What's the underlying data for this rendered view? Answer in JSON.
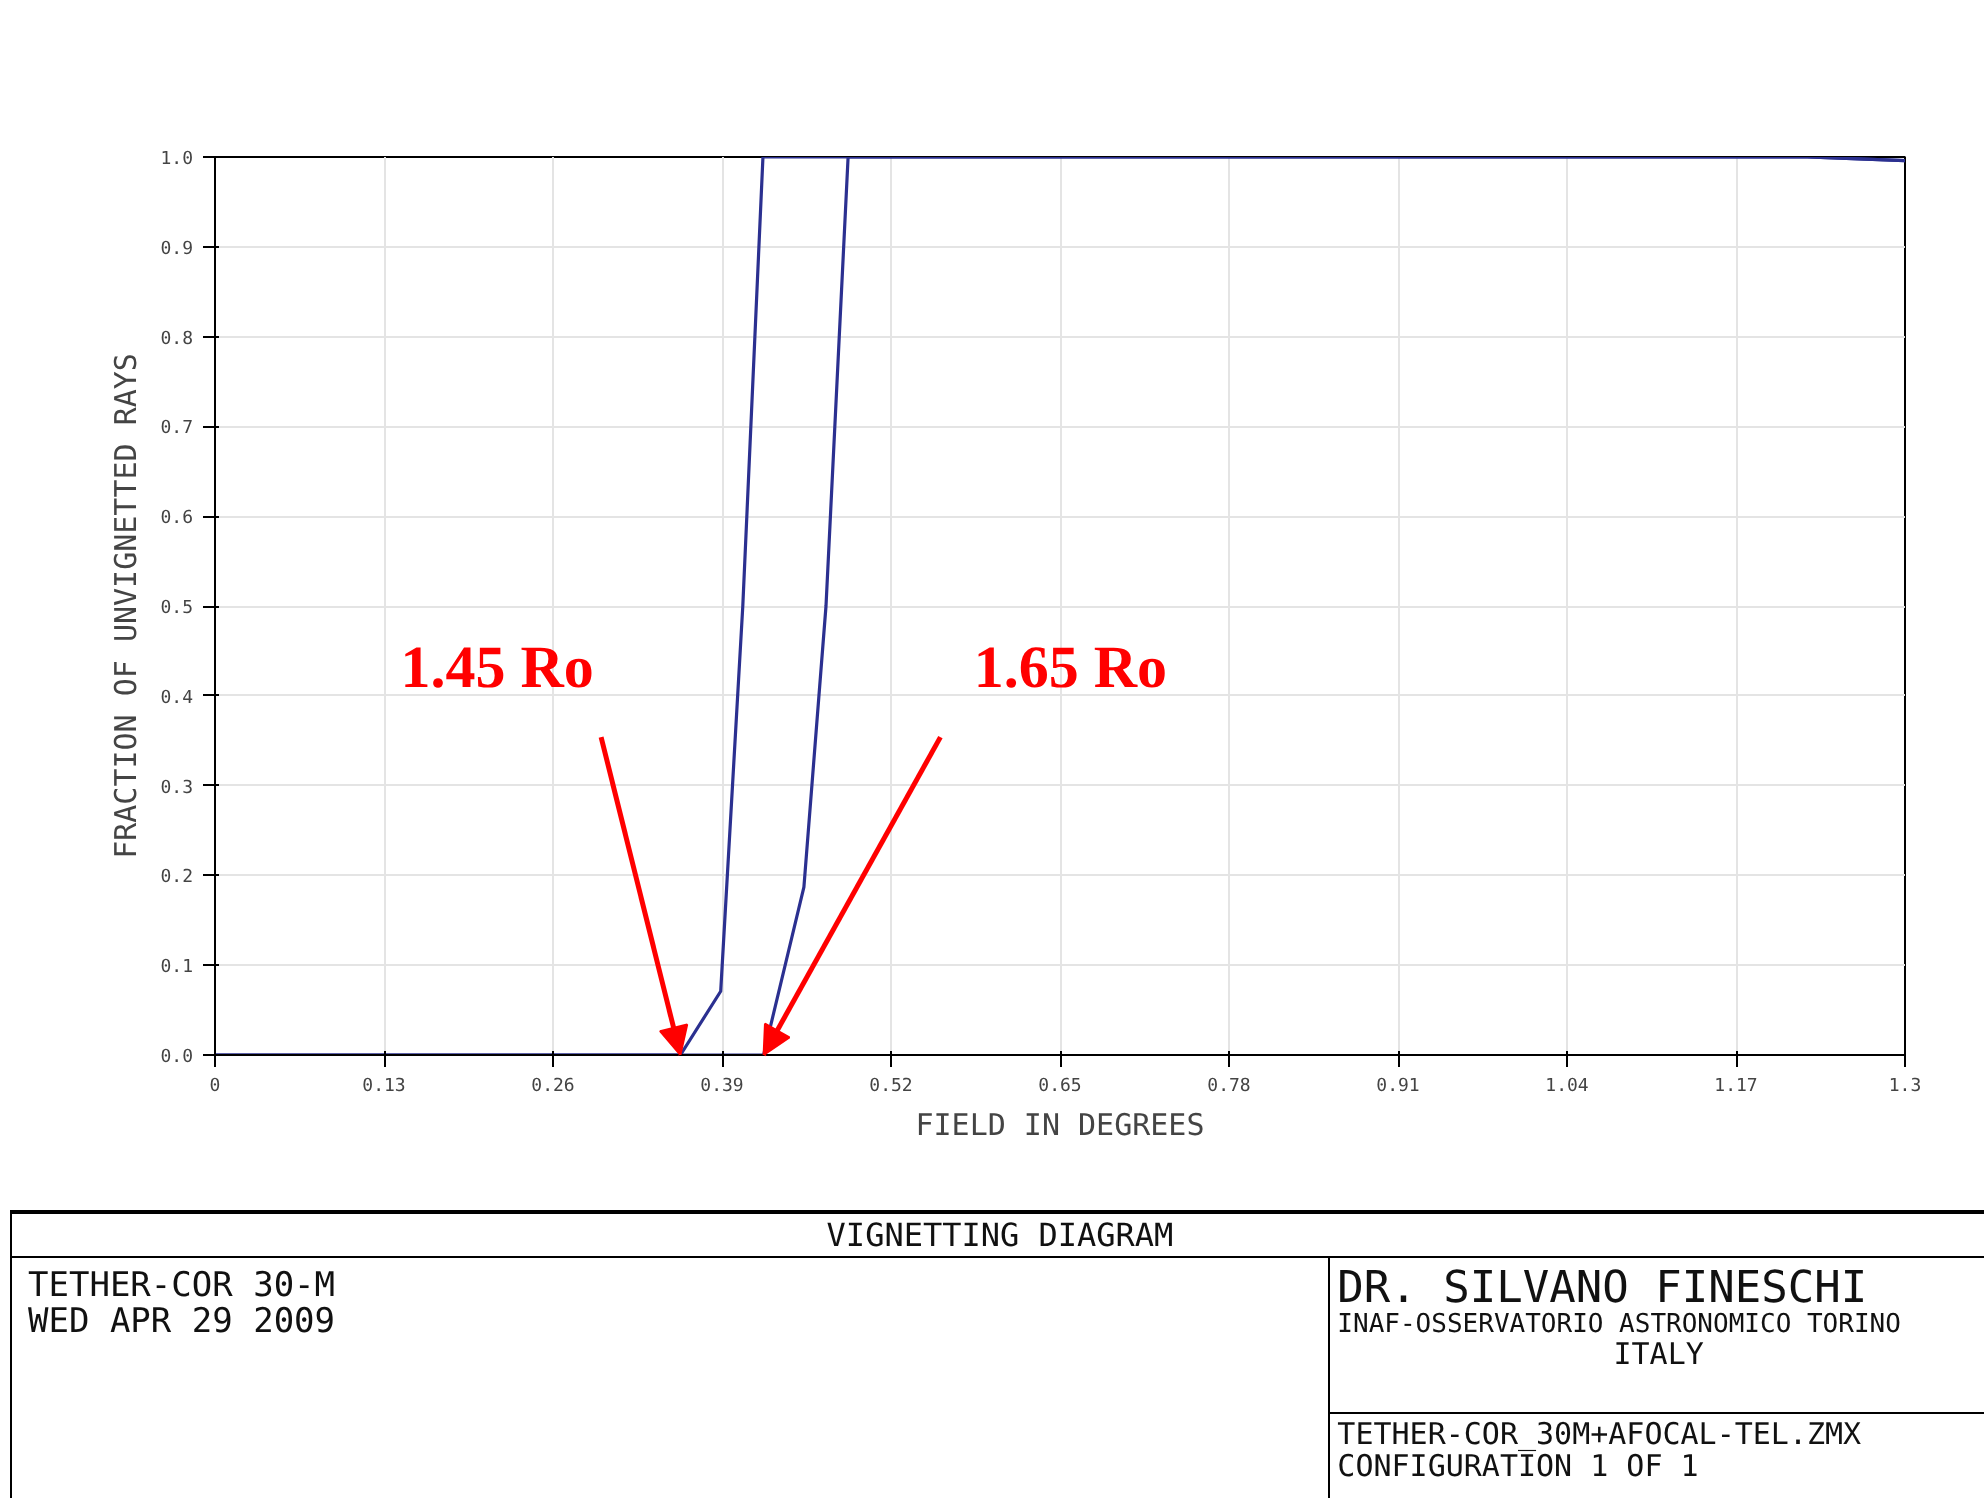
{
  "chart_data": {
    "type": "line",
    "title": "VIGNETTING DIAGRAM",
    "xlabel": "FIELD IN DEGREES",
    "ylabel": "FRACTION OF UNVIGNETTED RAYS",
    "series": [
      {
        "color": "#2b3090",
        "x": [
          0,
          0.358,
          0.389,
          0.406,
          0.4215,
          1.225,
          1.3
        ],
        "values": [
          0,
          0,
          0.071,
          0.5,
          1.0,
          1.0,
          0.996
        ]
      },
      {
        "color": "#2b3090",
        "x": [
          0,
          0.422,
          0.453,
          0.47,
          0.487,
          1.225,
          1.3
        ],
        "values": [
          0,
          0,
          0.187,
          0.5,
          1.0,
          1.0,
          0.996
        ]
      }
    ],
    "xlim": [
      0,
      1.3
    ],
    "ylim": [
      0,
      1.0
    ],
    "xticks": [
      0,
      0.13,
      0.26,
      0.39,
      0.52,
      0.65,
      0.78,
      0.91,
      1.04,
      1.17,
      1.3
    ],
    "yticks": [
      {
        "value": 0,
        "label": "0.0"
      },
      0.1,
      0.2,
      0.3,
      0.4,
      0.5,
      0.6,
      0.7,
      0.8,
      0.9,
      {
        "value": 1.0,
        "label": "1.0"
      }
    ],
    "grid": true,
    "marker": "none",
    "line_style": "solid",
    "annotations": [
      {
        "text": "1.45 Ro",
        "x": 0.358,
        "y": 0
      },
      {
        "text": "1.65 Ro",
        "x": 0.422,
        "y": 0
      },
      "TETHER-COR 30-M",
      "WED APR 29 2009",
      "DR. SILVANO FINESCHI",
      "INAF-OSSERVATORIO ASTRONOMICO TORINO",
      "ITALY",
      "TETHER-COR_30M+AFOCAL-TEL.ZMX",
      "CONFIGURATION 1 OF 1"
    ]
  }
}
